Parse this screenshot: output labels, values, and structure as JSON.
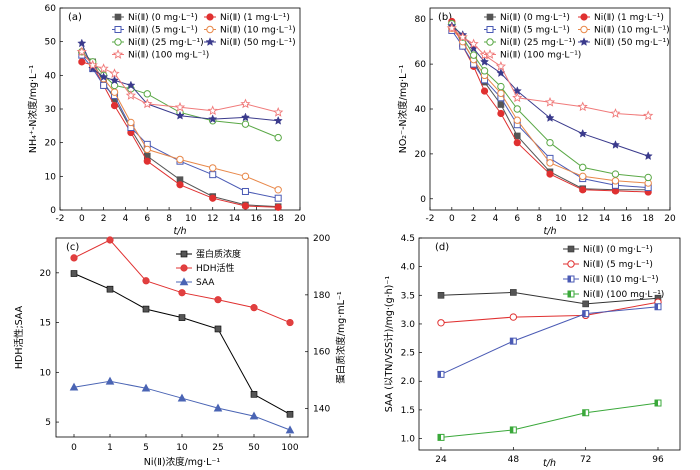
{
  "chart_data": [
    {
      "id": "a",
      "type": "line",
      "panel_label": "(a)",
      "xlabel": "t/h",
      "ylabel": "NH₄⁺-N浓度/mg·L⁻¹",
      "xlim": [
        -2,
        20
      ],
      "ylim": [
        0,
        60
      ],
      "x_ticks": [
        -2,
        0,
        2,
        4,
        6,
        8,
        10,
        12,
        14,
        16,
        18,
        20
      ],
      "y_ticks": [
        0,
        10,
        20,
        30,
        40,
        50,
        60
      ],
      "legend_position": "top-right",
      "legend_columns": 2,
      "x": [
        0,
        1,
        2,
        3,
        4.5,
        6,
        9,
        12,
        15,
        18
      ],
      "series": [
        {
          "name": "Ni(Ⅱ) (0 mg·L⁻¹)",
          "color": "#555555",
          "marker": "square-filled",
          "values": [
            46,
            44,
            38,
            33,
            24,
            16,
            9,
            4,
            1.5,
            1
          ]
        },
        {
          "name": "Ni(Ⅱ) (1 mg·L⁻¹)",
          "color": "#e03030",
          "marker": "circle-filled",
          "values": [
            44,
            43,
            37,
            31,
            23,
            14.5,
            7.5,
            3.5,
            1.2,
            0.8
          ]
        },
        {
          "name": "Ni(Ⅱ) (5 mg·L⁻¹)",
          "color": "#4a5ab4",
          "marker": "square-open",
          "values": [
            46,
            42,
            37,
            34,
            24.5,
            19.5,
            14.5,
            10.5,
            5.5,
            3.5
          ]
        },
        {
          "name": "Ni(Ⅱ) (10 mg·L⁻¹)",
          "color": "#e8884a",
          "marker": "circle-open",
          "values": [
            47,
            43,
            39,
            35,
            26,
            18,
            15,
            12.5,
            10,
            6
          ]
        },
        {
          "name": "Ni(Ⅱ) (25 mg·L⁻¹)",
          "color": "#5aa846",
          "marker": "circle-open",
          "values": [
            47,
            44,
            40,
            37,
            36,
            34.5,
            29,
            26.5,
            25.5,
            21.5
          ]
        },
        {
          "name": "Ni(Ⅱ) (50 mg·L⁻¹)",
          "color": "#3a3a8c",
          "marker": "star-filled",
          "values": [
            49.5,
            42,
            39.5,
            38.5,
            37,
            31.5,
            28,
            27,
            27.5,
            26.5
          ]
        },
        {
          "name": "Ni(Ⅱ) (100 mg·L⁻¹)",
          "color": "#f07a7a",
          "marker": "star-open",
          "values": [
            47,
            43,
            42,
            40.5,
            34,
            31.5,
            30.5,
            29.5,
            31.5,
            29
          ]
        }
      ]
    },
    {
      "id": "b",
      "type": "line",
      "panel_label": "(b)",
      "xlabel": "t/h",
      "ylabel": "NO₂⁻-N浓度/mg·L⁻¹",
      "xlim": [
        -2,
        20
      ],
      "ylim": [
        -5,
        85
      ],
      "x_ticks": [
        -2,
        0,
        2,
        4,
        6,
        8,
        10,
        12,
        14,
        16,
        18,
        20
      ],
      "y_ticks": [
        0,
        20,
        40,
        60,
        80
      ],
      "legend_position": "top-right",
      "legend_columns": 2,
      "x": [
        0,
        1,
        2,
        3,
        4.5,
        6,
        9,
        12,
        15,
        18
      ],
      "series": [
        {
          "name": "Ni(Ⅱ) (0 mg·L⁻¹)",
          "color": "#555555",
          "marker": "square-filled",
          "values": [
            77,
            70,
            62,
            52,
            42,
            28,
            12,
            4.5,
            4,
            4
          ]
        },
        {
          "name": "Ni(Ⅱ) (1 mg·L⁻¹)",
          "color": "#e03030",
          "marker": "circle-filled",
          "values": [
            79,
            68,
            59,
            48,
            38,
            25,
            11,
            4,
            3.5,
            3
          ]
        },
        {
          "name": "Ni(Ⅱ) (5 mg·L⁻¹)",
          "color": "#4a5ab4",
          "marker": "square-open",
          "values": [
            75,
            68,
            60,
            53,
            45,
            33,
            18,
            9,
            6,
            5
          ]
        },
        {
          "name": "Ni(Ⅱ) (10 mg·L⁻¹)",
          "color": "#e8884a",
          "marker": "circle-open",
          "values": [
            76,
            70,
            62,
            55,
            47,
            35,
            16,
            10,
            8,
            7
          ]
        },
        {
          "name": "Ni(Ⅱ) (25 mg·L⁻¹)",
          "color": "#5aa846",
          "marker": "circle-open",
          "values": [
            78,
            72,
            64,
            57,
            50,
            40,
            25,
            14,
            11,
            9.5
          ]
        },
        {
          "name": "Ni(Ⅱ) (50 mg·L⁻¹)",
          "color": "#3a3a8c",
          "marker": "star-filled",
          "values": [
            77,
            73,
            67,
            61,
            56,
            48,
            36,
            29,
            24,
            19
          ]
        },
        {
          "name": "Ni(Ⅱ) (100 mg·L⁻¹)",
          "color": "#f07a7a",
          "marker": "star-open",
          "values": [
            76,
            72,
            69,
            64,
            59,
            45,
            43,
            41,
            38,
            37
          ]
        }
      ]
    },
    {
      "id": "c",
      "type": "line",
      "panel_label": "(c)",
      "xlabel": "Ni(Ⅱ)浓度/mg·L⁻¹",
      "ylabel": "HDH活性;SAA",
      "y2label": "蛋白质浓度/mg·mL⁻¹",
      "categories": [
        "0",
        "1",
        "5",
        "10",
        "25",
        "50",
        "100"
      ],
      "ylim": [
        3.5,
        23.5
      ],
      "y_ticks": [
        5,
        10,
        15,
        20
      ],
      "y2lim": [
        130,
        200
      ],
      "y2_ticks": [
        140,
        160,
        180,
        200
      ],
      "legend_position": "top-center",
      "legend_columns": 1,
      "series": [
        {
          "name": "蛋白质浓度",
          "color": "#000000",
          "fill": "#555555",
          "marker": "square-filled",
          "axis": "right",
          "values": [
            187.5,
            182,
            175,
            172,
            168,
            145,
            138
          ]
        },
        {
          "name": "HDH活性",
          "color": "#e03030",
          "fill": "#e04040",
          "marker": "circle-filled",
          "axis": "left",
          "values": [
            21.5,
            23.3,
            19.2,
            18,
            17.3,
            16.5,
            15
          ]
        },
        {
          "name": "SAA",
          "color": "#4a64b4",
          "fill": "#4a64b4",
          "marker": "triangle-filled",
          "axis": "left",
          "values": [
            8.5,
            9.1,
            8.4,
            7.4,
            6.4,
            5.6,
            4.2
          ]
        }
      ]
    },
    {
      "id": "d",
      "type": "line",
      "panel_label": "(d)",
      "xlabel": "t/h",
      "ylabel": "SAA (以TN/VSS计)/mg·(g·h)⁻¹",
      "categories": [
        "24",
        "48",
        "72",
        "96"
      ],
      "ylim": [
        0.8,
        4.5
      ],
      "y_ticks": [
        1.0,
        1.5,
        2.0,
        2.5,
        3.0,
        3.5,
        4.0,
        4.5
      ],
      "legend_position": "top-right",
      "legend_columns": 1,
      "series": [
        {
          "name": "Ni(Ⅱ) (0 mg·L⁻¹)",
          "color": "#333333",
          "fill": "#555555",
          "marker": "square-filled",
          "values": [
            3.5,
            3.55,
            3.35,
            3.45
          ]
        },
        {
          "name": "Ni(Ⅱ) (5 mg·L⁻¹)",
          "color": "#e03030",
          "fill": "#ffffff",
          "marker": "circle-open",
          "values": [
            3.02,
            3.12,
            3.15,
            3.38
          ]
        },
        {
          "name": "Ni(Ⅱ) (10 mg·L⁻¹)",
          "color": "#4a5ab4",
          "fill": "#ffffff",
          "marker": "square-half",
          "values": [
            2.12,
            2.7,
            3.18,
            3.3
          ]
        },
        {
          "name": "Ni(Ⅱ) (100 mg·L⁻¹)",
          "color": "#3aa83a",
          "fill": "#ffffff",
          "marker": "square-half",
          "values": [
            1.02,
            1.15,
            1.45,
            1.62
          ]
        }
      ]
    }
  ]
}
